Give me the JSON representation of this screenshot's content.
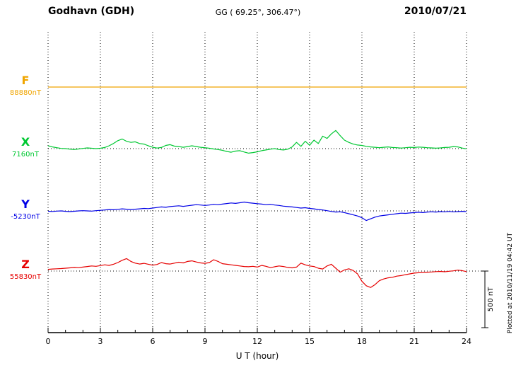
{
  "header": {
    "station": "Godhavn (GDH)",
    "coords": "GG ( 69.25°, 306.47°)",
    "date": "2010/07/21"
  },
  "xaxis": {
    "label": "U T (hour)",
    "tick_labels": [
      "0",
      "3",
      "6",
      "9",
      "12",
      "15",
      "18",
      "21",
      "24"
    ]
  },
  "scale_bar": {
    "label": "500 nT",
    "nT": 500
  },
  "side_note": "Plotted at 2010/11/19 04:42 UT",
  "chart_data": {
    "type": "line",
    "title": "Godhavn (GDH) magnetogram 2010/07/21",
    "xlabel": "U T (hour)",
    "x_range": [
      0,
      24
    ],
    "x_ticks": [
      0,
      3,
      6,
      9,
      12,
      15,
      18,
      21,
      24
    ],
    "grid": "dotted vertical at 3h intervals, dotted horizontal baselines per component",
    "unit": "nT",
    "values_are_offsets_from_base": true,
    "scale_reference_nT": 500,
    "series": [
      {
        "name": "F",
        "color": "#f0a500",
        "base_value": 88880,
        "base_value_label": "88880nT",
        "values": [
          0,
          0
        ]
      },
      {
        "name": "X",
        "color": "#00c832",
        "base_value": 7160,
        "base_value_label": "7160nT",
        "values": [
          25,
          15,
          8,
          2,
          0,
          -5,
          -8,
          -3,
          2,
          6,
          3,
          0,
          3,
          10,
          25,
          45,
          70,
          85,
          65,
          55,
          60,
          45,
          40,
          25,
          12,
          5,
          10,
          28,
          35,
          22,
          18,
          12,
          18,
          25,
          18,
          12,
          8,
          3,
          -3,
          -8,
          -15,
          -25,
          -32,
          -22,
          -18,
          -30,
          -40,
          -35,
          -28,
          -18,
          -12,
          -5,
          0,
          -8,
          -12,
          -5,
          15,
          55,
          20,
          65,
          30,
          75,
          45,
          110,
          90,
          130,
          160,
          115,
          75,
          55,
          40,
          32,
          28,
          20,
          15,
          12,
          8,
          12,
          15,
          10,
          8,
          5,
          8,
          12,
          10,
          14,
          12,
          8,
          6,
          4,
          6,
          10,
          12,
          18,
          15,
          5,
          -2
        ]
      },
      {
        "name": "Y",
        "color": "#0000e6",
        "base_value": -5230,
        "base_value_label": "-5230nT",
        "values": [
          -3,
          -5,
          -2,
          0,
          -4,
          -6,
          -3,
          0,
          2,
          0,
          -2,
          2,
          5,
          8,
          12,
          10,
          14,
          18,
          15,
          12,
          15,
          18,
          22,
          20,
          25,
          30,
          35,
          32,
          38,
          42,
          45,
          40,
          45,
          50,
          55,
          52,
          48,
          52,
          58,
          55,
          60,
          65,
          70,
          66,
          72,
          78,
          72,
          68,
          64,
          60,
          55,
          58,
          52,
          48,
          42,
          38,
          35,
          30,
          25,
          28,
          22,
          18,
          12,
          8,
          2,
          -5,
          -10,
          -8,
          -15,
          -25,
          -35,
          -45,
          -60,
          -85,
          -70,
          -55,
          -45,
          -40,
          -35,
          -30,
          -25,
          -20,
          -22,
          -18,
          -15,
          -12,
          -15,
          -10,
          -8,
          -10,
          -6,
          -8,
          -5,
          -8,
          -6,
          -4,
          -6
        ]
      },
      {
        "name": "Z",
        "color": "#e60000",
        "base_value": 55830,
        "base_value_label": "55830nT",
        "values": [
          15,
          18,
          20,
          22,
          25,
          28,
          32,
          30,
          35,
          40,
          45,
          42,
          48,
          55,
          50,
          60,
          75,
          95,
          110,
          85,
          70,
          62,
          68,
          60,
          52,
          58,
          75,
          65,
          62,
          70,
          78,
          72,
          85,
          90,
          80,
          72,
          68,
          75,
          100,
          85,
          65,
          60,
          55,
          50,
          45,
          40,
          38,
          42,
          35,
          50,
          42,
          30,
          38,
          45,
          40,
          32,
          28,
          35,
          70,
          55,
          45,
          40,
          25,
          18,
          45,
          60,
          25,
          -10,
          10,
          20,
          5,
          -25,
          -90,
          -130,
          -145,
          -120,
          -85,
          -70,
          -60,
          -55,
          -45,
          -40,
          -32,
          -25,
          -18,
          -15,
          -12,
          -10,
          -8,
          -5,
          -3,
          -6,
          -2,
          2,
          8,
          4,
          -5
        ]
      }
    ]
  }
}
